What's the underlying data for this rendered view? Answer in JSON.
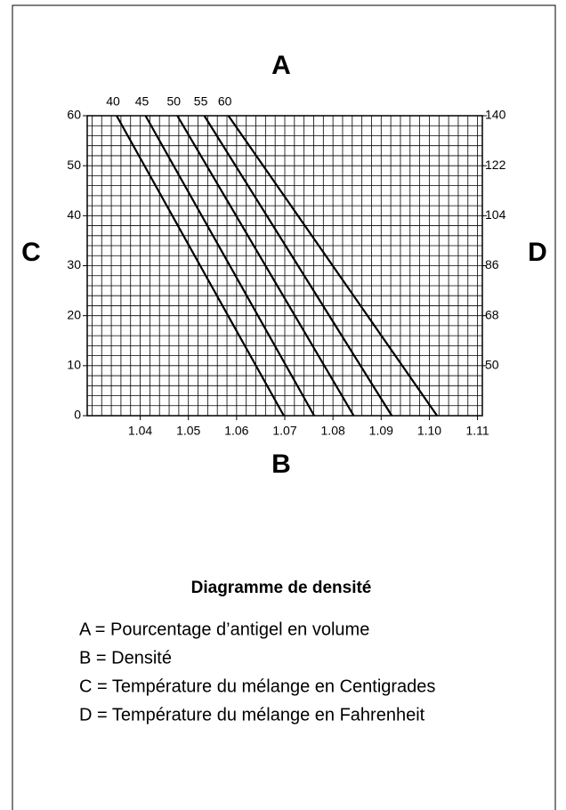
{
  "chart_data": {
    "type": "line",
    "top_label": "A",
    "xlabel": "B",
    "ylabel": "C",
    "y2label": "D",
    "title": "Diagramme de densité",
    "legend_lines": [
      "A = Pourcentage d’antigel en volume",
      "B = Densité",
      "C = Température du mélange en Centigrades",
      "D = Température du mélange en Fahrenheit"
    ],
    "xlim": [
      1.029,
      1.111
    ],
    "xticks": [
      1.04,
      1.05,
      1.06,
      1.07,
      1.08,
      1.09,
      {
        "value": 1.1,
        "label": "1.10"
      },
      1.11
    ],
    "ylim": [
      0,
      60
    ],
    "yticks": [
      0,
      10,
      20,
      30,
      40,
      50,
      60
    ],
    "y2lim": [
      32,
      140
    ],
    "y2ticks": [
      50,
      68,
      86,
      104,
      122,
      140
    ],
    "grid": true,
    "series": [
      {
        "name": "40",
        "color": "#000000",
        "x": [
          1.0351,
          1.0698
        ],
        "values": [
          60,
          0
        ]
      },
      {
        "name": "45",
        "color": "#000000",
        "x": [
          1.0411,
          1.0761
        ],
        "values": [
          60,
          0
        ]
      },
      {
        "name": "50",
        "color": "#000000",
        "x": [
          1.0477,
          1.0843
        ],
        "values": [
          60,
          0
        ]
      },
      {
        "name": "55",
        "color": "#000000",
        "x": [
          1.0533,
          1.0922
        ],
        "values": [
          60,
          0
        ]
      },
      {
        "name": "60",
        "color": "#000000",
        "x": [
          1.0583,
          1.1016
        ],
        "values": [
          60,
          0
        ]
      }
    ]
  }
}
